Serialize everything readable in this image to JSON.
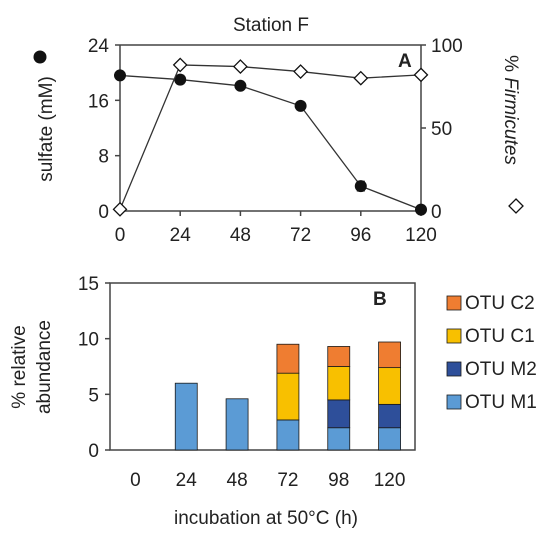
{
  "chart_data": [
    {
      "type": "line",
      "panel_label": "A",
      "title": "Station F",
      "x": [
        0,
        24,
        48,
        72,
        96,
        120
      ],
      "xlim": [
        0,
        120
      ],
      "x_tick_labels": [
        "0",
        "24",
        "48",
        "72",
        "96",
        "120"
      ],
      "ylabel": "sulfate (mM)",
      "ylim": [
        0,
        24
      ],
      "y_tick_labels": [
        "0",
        "8",
        "16",
        "24"
      ],
      "y2label_prefix": "% ",
      "y2label_italic": "Firmicutes",
      "y2lim": [
        0,
        100
      ],
      "y2_tick_labels": [
        "0",
        "50",
        "100"
      ],
      "series": [
        {
          "axis": "left",
          "marker": "circle-filled",
          "color": "#111111",
          "values": [
            19.6,
            19.0,
            18.1,
            15.2,
            3.6,
            0.2
          ],
          "errors": [
            0.5,
            0.6,
            0.3,
            0.4,
            0.7,
            0.3
          ]
        },
        {
          "axis": "right",
          "marker": "diamond-open",
          "color": "#111111",
          "values": [
            1,
            88,
            87,
            84,
            80,
            82
          ]
        }
      ],
      "legend_markers": [
        "left-axis: filled circle",
        "right-axis: open diamond"
      ]
    },
    {
      "type": "bar",
      "stacked": true,
      "panel_label": "B",
      "ylabel": [
        "% relative",
        "abundance"
      ],
      "ylim": [
        0,
        15
      ],
      "y_tick_labels": [
        "0",
        "5",
        "10",
        "15"
      ],
      "xlabel": "incubation at 50°C (h)",
      "categories": [
        "0",
        "24",
        "48",
        "72",
        "98",
        "120"
      ],
      "series": [
        {
          "name": "OTU M1",
          "color": "#5b9bd5",
          "values": [
            0,
            6.0,
            4.6,
            2.7,
            2.0,
            2.0
          ]
        },
        {
          "name": "OTU M2",
          "color": "#2e4f9a",
          "values": [
            0,
            0,
            0,
            0,
            2.5,
            2.1
          ]
        },
        {
          "name": "OTU C1",
          "color": "#f8c000",
          "values": [
            0,
            0,
            0,
            4.2,
            3.0,
            3.3
          ]
        },
        {
          "name": "OTU C2",
          "color": "#ef7d31",
          "values": [
            0,
            0,
            0,
            2.6,
            1.8,
            2.3
          ]
        }
      ],
      "legend_order": [
        "OTU C2",
        "OTU C1",
        "OTU M2",
        "OTU M1"
      ],
      "legend_position": "right"
    }
  ]
}
